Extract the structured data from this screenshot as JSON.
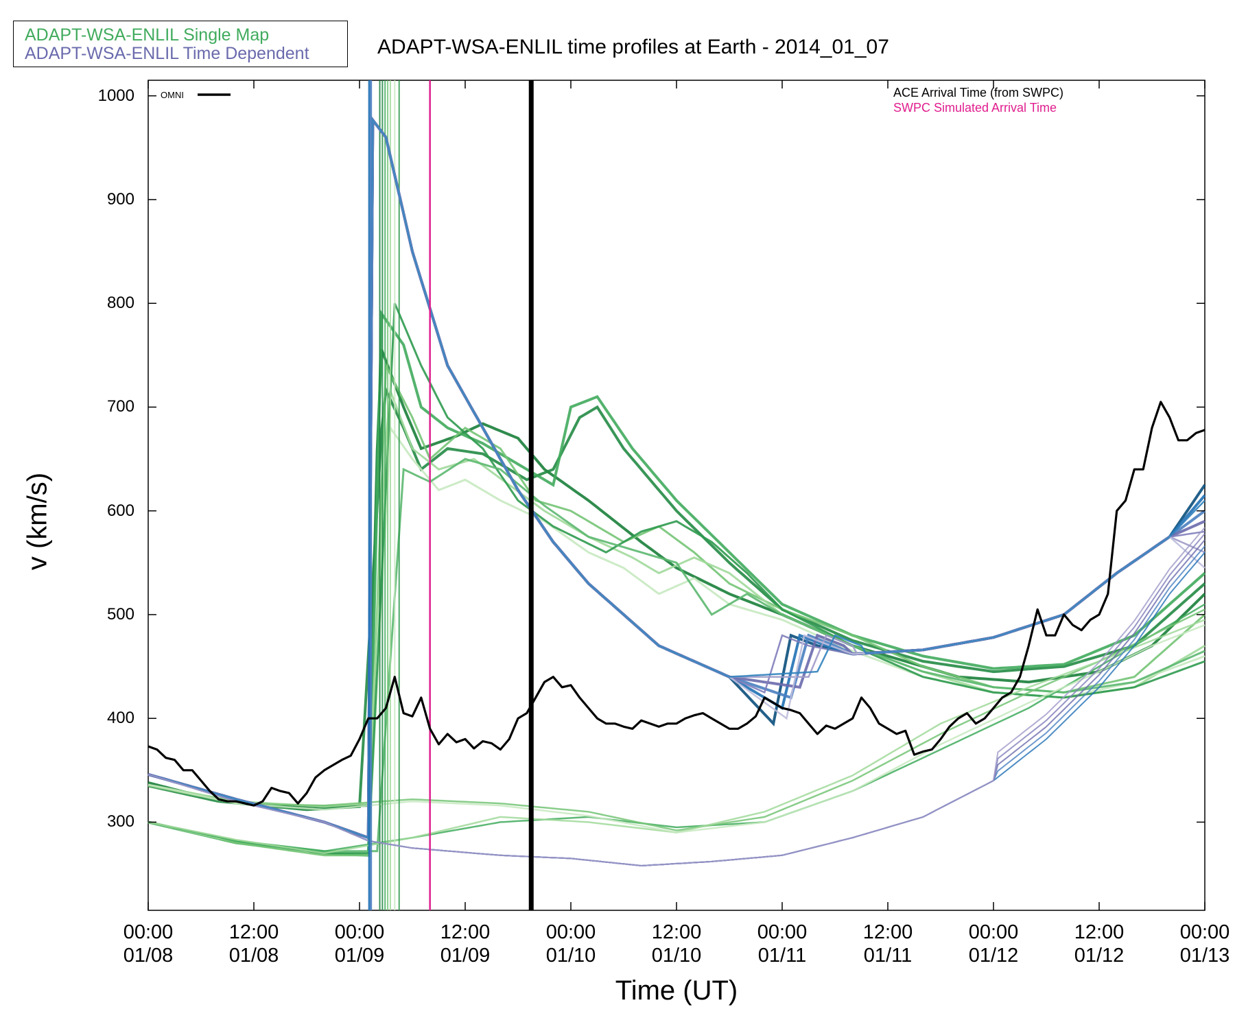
{
  "chart_data": {
    "type": "line",
    "title": "ADAPT-WSA-ENLIL time profiles at Earth - 2014_01_07",
    "xlabel": "Time (UT)",
    "ylabel": "v (km/s)",
    "xlim_hours": [
      0,
      120
    ],
    "ylim": [
      215,
      1015
    ],
    "y_ticks": [
      300,
      400,
      500,
      600,
      700,
      800,
      900,
      1000
    ],
    "x_ticks": [
      {
        "hours": 0,
        "time": "00:00",
        "date": "01/08"
      },
      {
        "hours": 12,
        "time": "12:00",
        "date": "01/08"
      },
      {
        "hours": 24,
        "time": "00:00",
        "date": "01/09"
      },
      {
        "hours": 36,
        "time": "12:00",
        "date": "01/09"
      },
      {
        "hours": 48,
        "time": "00:00",
        "date": "01/10"
      },
      {
        "hours": 60,
        "time": "12:00",
        "date": "01/10"
      },
      {
        "hours": 72,
        "time": "00:00",
        "date": "01/11"
      },
      {
        "hours": 84,
        "time": "12:00",
        "date": "01/11"
      },
      {
        "hours": 96,
        "time": "00:00",
        "date": "01/12"
      },
      {
        "hours": 108,
        "time": "12:00",
        "date": "01/12"
      },
      {
        "hours": 120,
        "time": "00:00",
        "date": "01/13"
      }
    ],
    "legend": {
      "single_map": {
        "label": "ADAPT-WSA-ENLIL Single Map",
        "color": "#41ab5d"
      },
      "time_dependent": {
        "label": "ADAPT-WSA-ENLIL Time Dependent",
        "color": "#6a6aad"
      }
    },
    "omni": {
      "name": "OMNI",
      "color": "#000000",
      "x_hours": [
        0,
        1,
        2,
        3,
        4,
        5,
        6,
        7,
        8,
        9,
        10,
        11,
        12,
        13,
        14,
        15,
        16,
        17,
        18,
        19,
        20,
        21,
        22,
        23,
        24,
        25,
        26,
        27,
        28,
        29,
        30,
        31,
        32,
        33,
        34,
        35,
        36,
        37,
        38,
        39,
        40,
        41,
        42,
        43,
        44,
        45,
        46,
        47,
        48,
        49,
        50,
        51,
        52,
        53,
        54,
        55,
        56,
        57,
        58,
        59,
        60,
        61,
        62,
        63,
        64,
        65,
        66,
        67,
        68,
        69,
        70,
        71,
        72,
        73,
        74,
        75,
        76,
        77,
        78,
        79,
        80,
        81,
        82,
        83,
        84,
        85,
        86,
        87,
        88,
        89,
        90,
        91,
        92,
        93,
        94,
        95,
        96,
        97,
        98,
        99,
        100,
        101,
        102,
        103,
        104,
        105,
        106,
        107,
        108,
        109,
        110,
        111,
        112,
        113,
        114,
        115,
        116,
        117,
        118,
        119,
        120
      ],
      "values": [
        373,
        370,
        362,
        360,
        350,
        350,
        340,
        330,
        322,
        320,
        320,
        318,
        316,
        320,
        333,
        330,
        328,
        318,
        328,
        343,
        350,
        355,
        360,
        364,
        380,
        400,
        400,
        410,
        440,
        405,
        402,
        420,
        390,
        375,
        385,
        377,
        380,
        371,
        378,
        376,
        370,
        380,
        400,
        405,
        420,
        435,
        440,
        430,
        432,
        420,
        410,
        400,
        395,
        395,
        392,
        390,
        398,
        395,
        392,
        395,
        395,
        400,
        403,
        405,
        400,
        395,
        390,
        390,
        395,
        402,
        420,
        415,
        410,
        408,
        405,
        395,
        385,
        393,
        390,
        395,
        400,
        420,
        410,
        395,
        390,
        385,
        388,
        365,
        368,
        370,
        380,
        392,
        400,
        405,
        395,
        400,
        410,
        420,
        425,
        440,
        470,
        505,
        480,
        480,
        500,
        490,
        485,
        495,
        500,
        520,
        600,
        610,
        640,
        640,
        680,
        705,
        690,
        668,
        668,
        675,
        678
      ]
    },
    "ensemble_shown": true,
    "vertical_markers": [
      {
        "name": "ACE Arrival Time (from SWPC)",
        "x_hours": 43.5,
        "color": "#000000"
      },
      {
        "name": "SWPC Simulated Arrival Time",
        "x_hours": 32.0,
        "color": "#e01e8e"
      }
    ]
  }
}
